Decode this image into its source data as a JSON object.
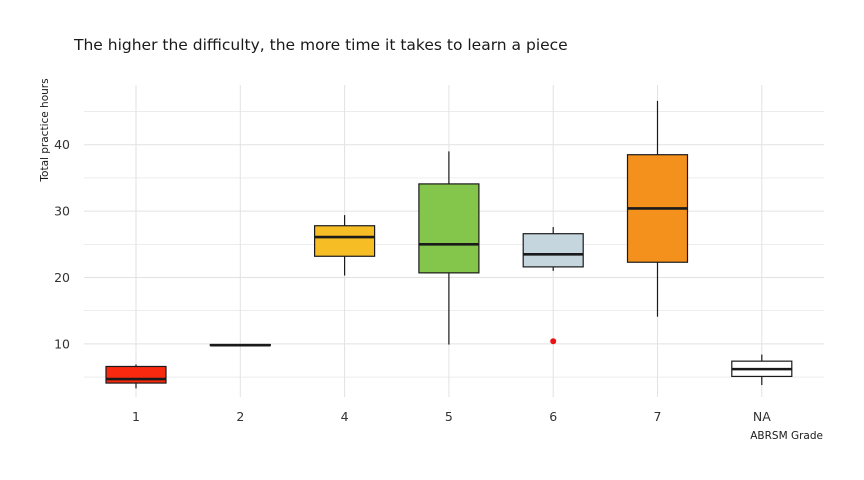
{
  "chart_data": {
    "type": "boxplot",
    "title": "The higher the difficulty, the more time it takes to learn a piece",
    "xlabel": "ABRSM Grade",
    "ylabel": "Total practice hours",
    "ylim": [
      2,
      49
    ],
    "yticks": [
      10,
      20,
      30,
      40
    ],
    "grid": true,
    "categories": [
      "1",
      "2",
      "4",
      "5",
      "6",
      "7",
      "NA"
    ],
    "boxes": [
      {
        "category": "1",
        "color": "#f8290f",
        "whisker_low": 3.3,
        "q1": 4.1,
        "median": 4.7,
        "q3": 6.6,
        "whisker_high": 6.9,
        "outliers": []
      },
      {
        "category": "2",
        "color": "#3a3a3a",
        "whisker_low": 9.8,
        "q1": 9.8,
        "median": 9.8,
        "q3": 9.9,
        "whisker_high": 9.9,
        "outliers": []
      },
      {
        "category": "4",
        "color": "#f6bd25",
        "whisker_low": 20.3,
        "q1": 23.2,
        "median": 26.1,
        "q3": 27.8,
        "whisker_high": 29.4,
        "outliers": []
      },
      {
        "category": "5",
        "color": "#84c54b",
        "whisker_low": 9.9,
        "q1": 20.7,
        "median": 25.0,
        "q3": 34.1,
        "whisker_high": 39.0,
        "outliers": []
      },
      {
        "category": "6",
        "color": "#c5d6df",
        "whisker_low": 21.0,
        "q1": 21.6,
        "median": 23.5,
        "q3": 26.6,
        "whisker_high": 27.6,
        "outliers": [
          10.4
        ]
      },
      {
        "category": "7",
        "color": "#f4901c",
        "whisker_low": 14.1,
        "q1": 22.3,
        "median": 30.4,
        "q3": 38.5,
        "whisker_high": 46.6,
        "outliers": []
      },
      {
        "category": "NA",
        "color": "#ffffff",
        "whisker_low": 3.8,
        "q1": 5.1,
        "median": 6.2,
        "q3": 7.4,
        "whisker_high": 8.4,
        "outliers": []
      }
    ],
    "outlier_color": "#ee1111",
    "gridline_color": "#e2e2e2",
    "box_stroke_color": "#1a1a1a"
  }
}
